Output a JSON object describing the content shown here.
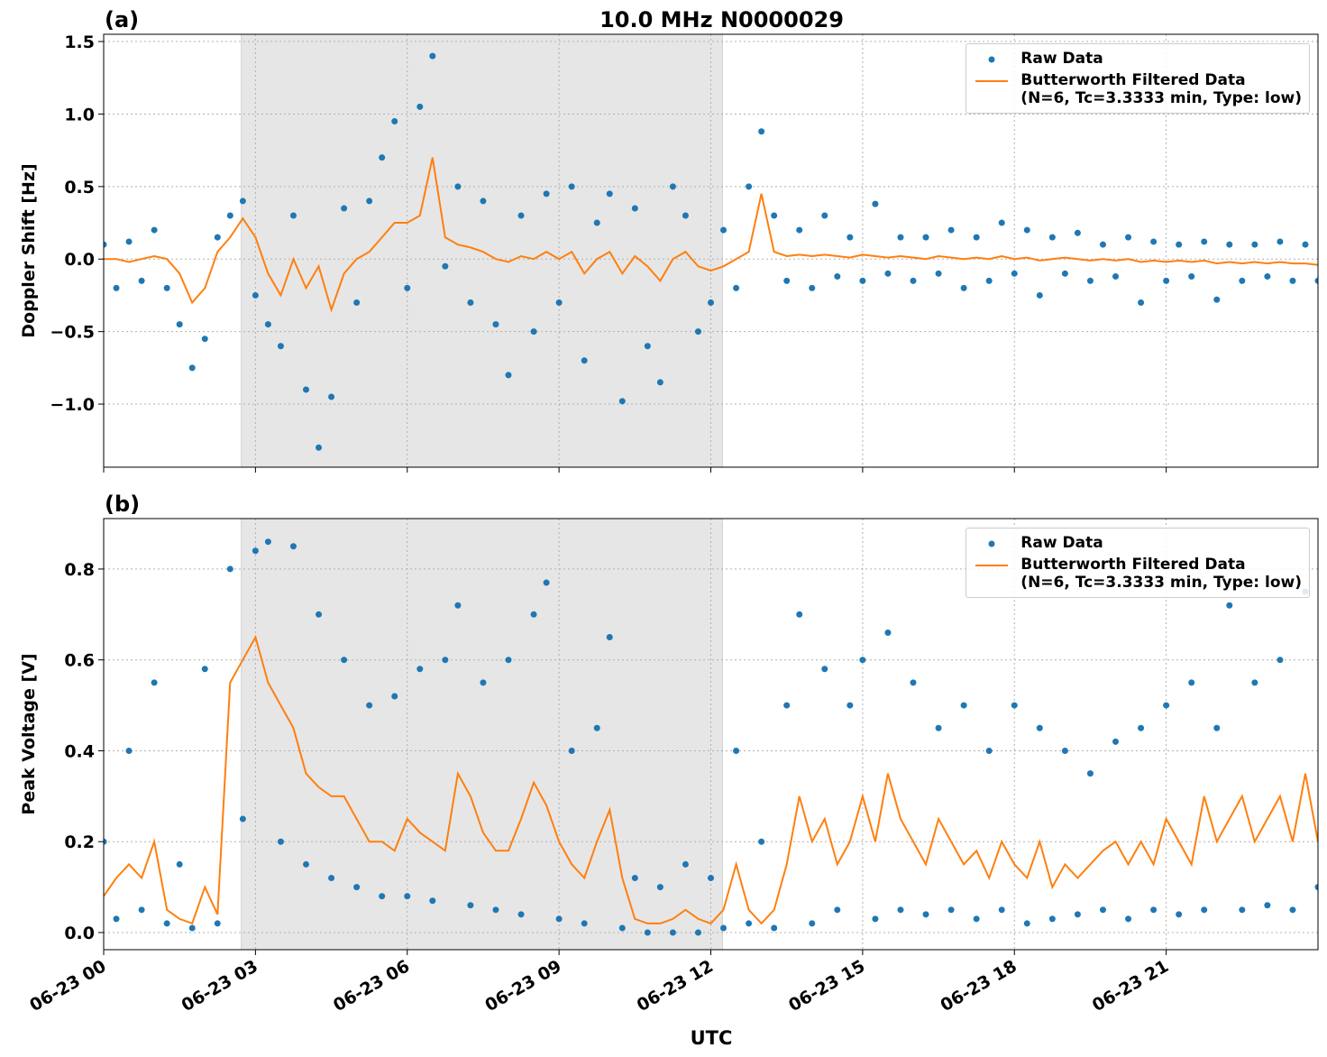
{
  "chart_data": [
    {
      "type": "scatter",
      "panel_label": "(a)",
      "title": "10.0 MHz N0000029",
      "ylabel": "Doppler Shift [Hz]",
      "x": [
        0,
        0.25,
        0.5,
        0.75,
        1,
        1.25,
        1.5,
        1.75,
        2,
        2.25,
        2.5,
        2.75,
        3,
        3.25,
        3.5,
        3.75,
        4,
        4.25,
        4.5,
        4.75,
        5,
        5.25,
        5.5,
        5.75,
        6,
        6.25,
        6.5,
        6.75,
        7,
        7.25,
        7.5,
        7.75,
        8,
        8.25,
        8.5,
        8.75,
        9,
        9.25,
        9.5,
        9.75,
        10,
        10.25,
        10.5,
        10.75,
        11,
        11.25,
        11.5,
        11.75,
        12,
        12.25,
        12.5,
        12.75,
        13,
        13.25,
        13.5,
        13.75,
        14,
        14.25,
        14.5,
        14.75,
        15,
        15.25,
        15.5,
        15.75,
        16,
        16.25,
        16.5,
        16.75,
        17,
        17.25,
        17.5,
        17.75,
        18,
        18.25,
        18.5,
        18.75,
        19,
        19.25,
        19.5,
        19.75,
        20,
        20.25,
        20.5,
        20.75,
        21,
        21.25,
        21.5,
        21.75,
        22,
        22.25,
        22.5,
        22.75,
        23,
        23.25,
        23.5,
        23.75,
        24
      ],
      "series": [
        {
          "name": "Raw Data",
          "color": "#1f77b4",
          "mark": "dot",
          "values": [
            0.1,
            -0.2,
            0.12,
            -0.15,
            0.2,
            -0.2,
            -0.45,
            -0.75,
            -0.55,
            0.15,
            0.3,
            0.4,
            -0.25,
            -0.45,
            -0.6,
            0.3,
            -0.9,
            -1.3,
            -0.95,
            0.35,
            -0.3,
            0.4,
            0.7,
            0.95,
            -0.2,
            1.05,
            1.4,
            -0.05,
            0.5,
            -0.3,
            0.4,
            -0.45,
            -0.8,
            0.3,
            -0.5,
            0.45,
            -0.3,
            0.5,
            -0.7,
            0.25,
            0.45,
            -0.98,
            0.35,
            -0.6,
            -0.85,
            0.5,
            0.3,
            -0.5,
            -0.3,
            0.2,
            -0.2,
            0.5,
            0.88,
            0.3,
            -0.15,
            0.2,
            -0.2,
            0.3,
            -0.12,
            0.15,
            -0.15,
            0.38,
            -0.1,
            0.15,
            -0.15,
            0.15,
            -0.1,
            0.2,
            -0.2,
            0.15,
            -0.15,
            0.25,
            -0.1,
            0.2,
            -0.25,
            0.15,
            -0.1,
            0.18,
            -0.15,
            0.1,
            -0.12,
            0.15,
            -0.3,
            0.12,
            -0.15,
            0.1,
            -0.12,
            0.12,
            -0.28,
            0.1,
            -0.15,
            0.1,
            -0.12,
            0.12,
            -0.15,
            0.1,
            -0.15
          ]
        },
        {
          "name": "Butterworth Filtered Data\n(N=6, Tc=3.3333 min, Type: low)",
          "color": "#ff7f0e",
          "mark": "line",
          "values": [
            0,
            0,
            -0.02,
            0,
            0.02,
            0,
            -0.1,
            -0.3,
            -0.2,
            0.05,
            0.15,
            0.28,
            0.15,
            -0.1,
            -0.25,
            0,
            -0.2,
            -0.05,
            -0.35,
            -0.1,
            0,
            0.05,
            0.15,
            0.25,
            0.25,
            0.3,
            0.7,
            0.15,
            0.1,
            0.08,
            0.05,
            0,
            -0.02,
            0.02,
            0,
            0.05,
            0,
            0.05,
            -0.1,
            0,
            0.05,
            -0.1,
            0.02,
            -0.05,
            -0.15,
            0,
            0.05,
            -0.05,
            -0.08,
            -0.05,
            0,
            0.05,
            0.45,
            0.05,
            0.02,
            0.03,
            0.02,
            0.03,
            0.02,
            0.01,
            0.03,
            0.02,
            0.01,
            0.02,
            0.01,
            0,
            0.02,
            0.01,
            0,
            0.01,
            0,
            0.02,
            0,
            0.01,
            -0.01,
            0,
            0.01,
            0,
            -0.01,
            0,
            -0.01,
            0,
            -0.02,
            -0.01,
            -0.02,
            -0.01,
            -0.02,
            -0.01,
            -0.03,
            -0.02,
            -0.03,
            -0.02,
            -0.03,
            -0.02,
            -0.03,
            -0.03,
            -0.04
          ]
        }
      ],
      "xlim": [
        0,
        24
      ],
      "xticks": [
        0,
        3,
        6,
        9,
        12,
        15,
        18,
        21
      ],
      "tick_labels_x": false,
      "ylim": [
        -1.435,
        1.55
      ],
      "yticks": [
        {
          "value": -1.0,
          "label": "−1.0"
        },
        {
          "value": -0.5,
          "label": "−0.5"
        },
        {
          "value": 0.0,
          "label": "0.0"
        },
        0.5,
        {
          "value": 1.0,
          "label": "1.0"
        },
        1.5
      ],
      "shade": [
        2.72,
        12.23
      ],
      "grid": true,
      "legend": "upper right"
    },
    {
      "type": "scatter",
      "panel_label": "(b)",
      "ylabel": "Peak Voltage [V]",
      "xlabel": "UTC",
      "x": [
        0,
        0.25,
        0.5,
        0.75,
        1,
        1.25,
        1.5,
        1.75,
        2,
        2.25,
        2.5,
        2.75,
        3,
        3.25,
        3.5,
        3.75,
        4,
        4.25,
        4.5,
        4.75,
        5,
        5.25,
        5.5,
        5.75,
        6,
        6.25,
        6.5,
        6.75,
        7,
        7.25,
        7.5,
        7.75,
        8,
        8.25,
        8.5,
        8.75,
        9,
        9.25,
        9.5,
        9.75,
        10,
        10.25,
        10.5,
        10.75,
        11,
        11.25,
        11.5,
        11.75,
        12,
        12.25,
        12.5,
        12.75,
        13,
        13.25,
        13.5,
        13.75,
        14,
        14.25,
        14.5,
        14.75,
        15,
        15.25,
        15.5,
        15.75,
        16,
        16.25,
        16.5,
        16.75,
        17,
        17.25,
        17.5,
        17.75,
        18,
        18.25,
        18.5,
        18.75,
        19,
        19.25,
        19.5,
        19.75,
        20,
        20.25,
        20.5,
        20.75,
        21,
        21.25,
        21.5,
        21.75,
        22,
        22.25,
        22.5,
        22.75,
        23,
        23.25,
        23.5,
        23.75,
        24
      ],
      "series": [
        {
          "name": "Raw Data",
          "color": "#1f77b4",
          "mark": "dot",
          "values": [
            0.2,
            0.03,
            0.4,
            0.05,
            0.55,
            0.02,
            0.15,
            0.01,
            0.58,
            0.02,
            0.8,
            0.25,
            0.84,
            0.86,
            0.2,
            0.85,
            0.15,
            0.7,
            0.12,
            0.6,
            0.1,
            0.5,
            0.08,
            0.52,
            0.08,
            0.58,
            0.07,
            0.6,
            0.72,
            0.06,
            0.55,
            0.05,
            0.6,
            0.04,
            0.7,
            0.77,
            0.03,
            0.4,
            0.02,
            0.45,
            0.65,
            0.01,
            0.12,
            0,
            0.1,
            0,
            0.15,
            0,
            0.12,
            0.01,
            0.4,
            0.02,
            0.2,
            0.01,
            0.5,
            0.7,
            0.02,
            0.58,
            0.05,
            0.5,
            0.6,
            0.03,
            0.66,
            0.05,
            0.55,
            0.04,
            0.45,
            0.05,
            0.5,
            0.03,
            0.4,
            0.05,
            0.5,
            0.02,
            0.45,
            0.03,
            0.4,
            0.04,
            0.35,
            0.05,
            0.42,
            0.03,
            0.45,
            0.05,
            0.5,
            0.04,
            0.55,
            0.05,
            0.45,
            0.72,
            0.05,
            0.55,
            0.06,
            0.6,
            0.05,
            0.75,
            0.1
          ]
        },
        {
          "name": "Butterworth Filtered Data\n(N=6, Tc=3.3333 min, Type: low)",
          "color": "#ff7f0e",
          "mark": "line",
          "values": [
            0.08,
            0.12,
            0.15,
            0.12,
            0.2,
            0.05,
            0.03,
            0.02,
            0.1,
            0.04,
            0.55,
            0.6,
            0.65,
            0.55,
            0.5,
            0.45,
            0.35,
            0.32,
            0.3,
            0.3,
            0.25,
            0.2,
            0.2,
            0.18,
            0.25,
            0.22,
            0.2,
            0.18,
            0.35,
            0.3,
            0.22,
            0.18,
            0.18,
            0.25,
            0.33,
            0.28,
            0.2,
            0.15,
            0.12,
            0.2,
            0.27,
            0.12,
            0.03,
            0.02,
            0.02,
            0.03,
            0.05,
            0.03,
            0.02,
            0.05,
            0.15,
            0.05,
            0.02,
            0.05,
            0.15,
            0.3,
            0.2,
            0.25,
            0.15,
            0.2,
            0.3,
            0.2,
            0.35,
            0.25,
            0.2,
            0.15,
            0.25,
            0.2,
            0.15,
            0.18,
            0.12,
            0.2,
            0.15,
            0.12,
            0.2,
            0.1,
            0.15,
            0.12,
            0.15,
            0.18,
            0.2,
            0.15,
            0.2,
            0.15,
            0.25,
            0.2,
            0.15,
            0.3,
            0.2,
            0.25,
            0.3,
            0.2,
            0.25,
            0.3,
            0.2,
            0.35,
            0.2
          ]
        }
      ],
      "xlim": [
        0,
        24
      ],
      "xticks": [
        {
          "value": 0,
          "label": "06-23 00"
        },
        {
          "value": 3,
          "label": "06-23 03"
        },
        {
          "value": 6,
          "label": "06-23 06"
        },
        {
          "value": 9,
          "label": "06-23 09"
        },
        {
          "value": 12,
          "label": "06-23 12"
        },
        {
          "value": 15,
          "label": "06-23 15"
        },
        {
          "value": 18,
          "label": "06-23 18"
        },
        {
          "value": 21,
          "label": "06-23 21"
        }
      ],
      "tick_labels_x": true,
      "ylim": [
        -0.0377,
        0.911
      ],
      "yticks": [
        {
          "value": 0.0,
          "label": "0.0"
        },
        0.2,
        0.4,
        0.6,
        0.8
      ],
      "shade": [
        2.72,
        12.23
      ],
      "grid": true,
      "legend": "upper right"
    }
  ]
}
